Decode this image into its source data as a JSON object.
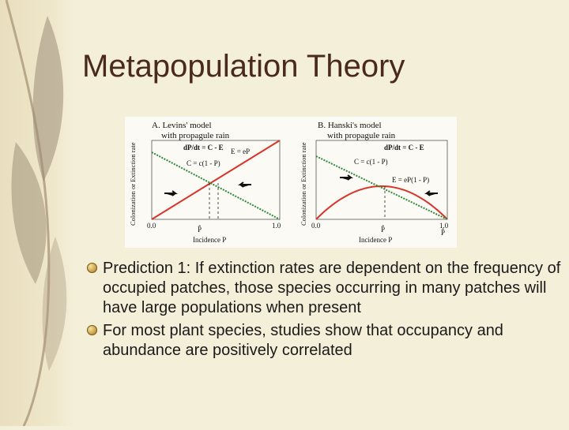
{
  "slide": {
    "title": "Metapopulation Theory"
  },
  "figure": {
    "panel_a": {
      "title_line1": "A. Levins' model",
      "title_line2": "with propagule rain",
      "y_label": "Colonization or Extinction rate",
      "x_label": "Incidence P",
      "x_min": "0.0",
      "x_max": "1.0",
      "equilibrium_label": "P̂",
      "eq_dpdt": "dP/dt = C - E",
      "eq_extinction": "E = eP",
      "eq_colonization": "C = c(1 - P)",
      "equilibrium_value": 0.45,
      "extinction_line": {
        "from": [
          0.0,
          0.0
        ],
        "to": [
          1.0,
          1.0
        ],
        "color": "#d8342a"
      },
      "colonization_line": {
        "from": [
          0.0,
          0.85
        ],
        "to": [
          1.0,
          0.0
        ],
        "color": "#2e8b3e"
      }
    },
    "panel_b": {
      "title_line1": "B. Hanski's model",
      "title_line2": "with propagule rain",
      "y_label": "Colonization or Extinction rate",
      "x_label": "Incidence P",
      "x_min": "0.0",
      "x_max": "1.0",
      "equilibrium_label_1": "P̂",
      "equilibrium_label_2": "P̂",
      "eq_dpdt": "dP/dt = C - E",
      "eq_colonization": "C = c(1 - P)",
      "eq_extinction": "E = eP(1 - P)",
      "equilibrium_values": [
        0.5,
        1.0
      ],
      "extinction_curve": {
        "form": "eP(1-P)",
        "color": "#d8342a"
      },
      "colonization_line": {
        "from": [
          0.0,
          0.8
        ],
        "to": [
          1.0,
          0.0
        ],
        "color": "#2e8b3e"
      }
    }
  },
  "bullets": [
    "Prediction 1: If extinction rates are dependent on the frequency of occupied patches, those species occurring in many patches will have large populations when present",
    "For most plant species, studies show that occupancy and abundance are positively correlated"
  ]
}
